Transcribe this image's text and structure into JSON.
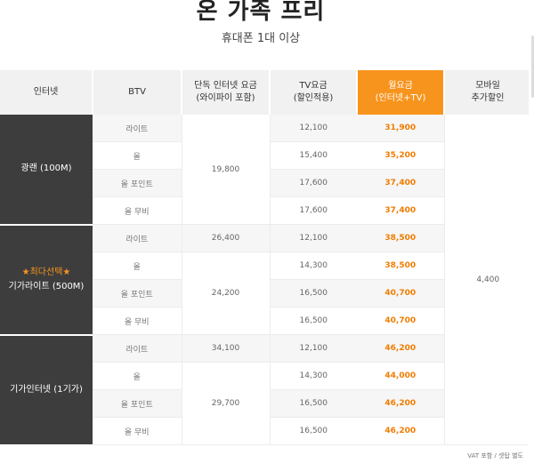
{
  "header": {
    "title": "온 가족 프리",
    "subtitle": "휴대폰 1대 이상"
  },
  "table": {
    "headers": [
      "인터넷",
      "BTV",
      "단독 인터넷 요금\n(와이파이 포함)",
      "TV요금\n(할인적용)",
      "월요금\n(인터넷+TV)",
      "모바일\n추가할인"
    ],
    "highlight_color": "#f7941d",
    "groups": [
      {
        "net_star": "",
        "net_name": "광랜 (100M)",
        "rows": [
          {
            "btv": "라이트",
            "tv": "12,100",
            "month": "31,900"
          },
          {
            "btv": "올",
            "tv": "15,400",
            "month": "35,200"
          },
          {
            "btv": "올 포인트",
            "tv": "17,600",
            "month": "37,400"
          },
          {
            "btv": "올 무비",
            "tv": "17,600",
            "month": "37,400"
          }
        ],
        "internet_first": "",
        "internet_rest": "19,800"
      },
      {
        "net_star": "★최다선택★",
        "net_name": "기가라이트 (500M)",
        "rows": [
          {
            "btv": "라이트",
            "tv": "12,100",
            "month": "38,500"
          },
          {
            "btv": "올",
            "tv": "14,300",
            "month": "38,500"
          },
          {
            "btv": "올 포인트",
            "tv": "16,500",
            "month": "40,700"
          },
          {
            "btv": "올 무비",
            "tv": "16,500",
            "month": "40,700"
          }
        ],
        "internet_first": "26,400",
        "internet_rest": "24,200"
      },
      {
        "net_star": "",
        "net_name": "기가인터넷 (1기가)",
        "rows": [
          {
            "btv": "라이트",
            "tv": "12,100",
            "month": "46,200"
          },
          {
            "btv": "올",
            "tv": "14,300",
            "month": "44,000"
          },
          {
            "btv": "올 포인트",
            "tv": "16,500",
            "month": "46,200"
          },
          {
            "btv": "올 무비",
            "tv": "16,500",
            "month": "46,200"
          }
        ],
        "internet_first": "34,100",
        "internet_rest": "29,700"
      }
    ],
    "mobile_discount": "4,400"
  },
  "footer": {
    "note": "VAT 포함 / 셋탑 별도"
  }
}
